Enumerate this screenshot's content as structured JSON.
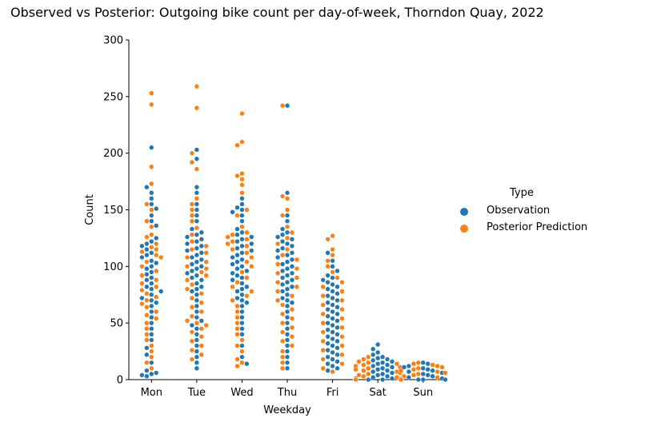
{
  "chart_data": {
    "type": "swarm",
    "title": "Observed vs Posterior: Outgoing bike count per day-of-week, Thorndon Quay, 2022",
    "xlabel": "Weekday",
    "ylabel": "Count",
    "ylim": [
      0,
      300
    ],
    "yticks": [
      0,
      50,
      100,
      150,
      200,
      250,
      300
    ],
    "categories": [
      "Mon",
      "Tue",
      "Wed",
      "Thu",
      "Fri",
      "Sat",
      "Sun"
    ],
    "legend": {
      "title": "Type",
      "placement": "right"
    },
    "series": [
      {
        "name": "Observation",
        "color": "#1f77b4",
        "values": [
          [
            205,
            170,
            165,
            160,
            155,
            151,
            145,
            140,
            136,
            125,
            122,
            120,
            118,
            115,
            112,
            110,
            108,
            105,
            103,
            100,
            98,
            95,
            93,
            90,
            88,
            85,
            82,
            80,
            78,
            75,
            72,
            70,
            68,
            65,
            60,
            55,
            50,
            45,
            40,
            35,
            28,
            22,
            15,
            8,
            6,
            5,
            4,
            3
          ],
          [
            203,
            195,
            170,
            165,
            155,
            150,
            145,
            140,
            133,
            130,
            128,
            126,
            124,
            122,
            120,
            118,
            116,
            114,
            112,
            110,
            108,
            106,
            104,
            102,
            100,
            98,
            96,
            94,
            92,
            90,
            88,
            85,
            82,
            80,
            78,
            75,
            70,
            65,
            60,
            55,
            52,
            48,
            45,
            40,
            35,
            30,
            25,
            20,
            15,
            10
          ],
          [
            160,
            155,
            152,
            150,
            148,
            145,
            140,
            133,
            130,
            128,
            126,
            124,
            122,
            120,
            118,
            116,
            114,
            112,
            110,
            108,
            106,
            104,
            102,
            100,
            98,
            96,
            94,
            92,
            90,
            88,
            85,
            82,
            80,
            78,
            75,
            72,
            70,
            68,
            65,
            60,
            55,
            50,
            45,
            40,
            30,
            20,
            14
          ],
          [
            242,
            165,
            145,
            140,
            133,
            130,
            128,
            126,
            124,
            122,
            120,
            118,
            116,
            114,
            112,
            110,
            108,
            106,
            104,
            102,
            100,
            98,
            96,
            94,
            92,
            90,
            88,
            86,
            84,
            82,
            80,
            78,
            75,
            72,
            70,
            68,
            65,
            60,
            55,
            50,
            45,
            40,
            35,
            30,
            25,
            20,
            15,
            10
          ],
          [
            112,
            105,
            100,
            96,
            92,
            90,
            88,
            86,
            84,
            82,
            80,
            78,
            76,
            74,
            72,
            70,
            68,
            66,
            64,
            62,
            60,
            58,
            56,
            54,
            52,
            50,
            48,
            46,
            44,
            42,
            40,
            38,
            36,
            34,
            32,
            30,
            28,
            26,
            24,
            22,
            20,
            18,
            16,
            14,
            12,
            10,
            8
          ],
          [
            31,
            27,
            24,
            22,
            20,
            19,
            18,
            17,
            16,
            15,
            14,
            13,
            12,
            11,
            10,
            9,
            8,
            7,
            6,
            5,
            4,
            3,
            2,
            1,
            1,
            0,
            0,
            0,
            0,
            0,
            0,
            0,
            0,
            0,
            0,
            0
          ],
          [
            15,
            14,
            12,
            11,
            10,
            9,
            8,
            7,
            6,
            5,
            4,
            3,
            2,
            1,
            0,
            0,
            0,
            0,
            0,
            0,
            0,
            0,
            0,
            0,
            0,
            0,
            0,
            0,
            0,
            0,
            0
          ]
        ]
      },
      {
        "name": "Posterior Prediction",
        "color": "#ff7f0e",
        "values": [
          [
            253,
            243,
            188,
            173,
            155,
            150,
            140,
            135,
            128,
            126,
            120,
            117,
            115,
            113,
            110,
            108,
            104,
            100,
            96,
            92,
            88,
            85,
            82,
            79,
            76,
            73,
            70,
            67,
            64,
            60,
            57,
            54,
            50,
            45,
            40,
            35,
            30,
            25,
            20,
            15,
            10
          ],
          [
            259,
            240,
            200,
            192,
            186,
            160,
            155,
            150,
            145,
            140,
            134,
            128,
            122,
            118,
            115,
            112,
            108,
            104,
            100,
            98,
            95,
            92,
            88,
            84,
            80,
            76,
            72,
            68,
            64,
            60,
            56,
            52,
            50,
            48,
            45,
            42,
            38,
            34,
            30,
            26,
            22,
            18
          ],
          [
            235,
            210,
            207,
            182,
            180,
            177,
            172,
            165,
            150,
            145,
            135,
            130,
            128,
            126,
            124,
            122,
            120,
            118,
            115,
            112,
            108,
            104,
            100,
            95,
            90,
            86,
            82,
            78,
            74,
            70,
            65,
            60,
            55,
            50,
            45,
            40,
            35,
            30,
            25,
            18,
            15,
            12
          ],
          [
            242,
            162,
            160,
            150,
            145,
            135,
            130,
            125,
            120,
            115,
            110,
            106,
            102,
            98,
            94,
            90,
            86,
            82,
            78,
            74,
            70,
            66,
            62,
            58,
            54,
            50,
            46,
            42,
            38,
            34,
            30,
            25,
            20,
            15,
            10
          ],
          [
            127,
            124,
            115,
            110,
            105,
            100,
            95,
            90,
            86,
            82,
            78,
            74,
            70,
            66,
            62,
            58,
            54,
            50,
            46,
            42,
            38,
            34,
            30,
            26,
            22,
            18,
            14,
            10,
            7
          ],
          [
            20,
            18,
            16,
            15,
            14,
            13,
            12,
            11,
            10,
            9,
            8,
            7,
            6,
            5,
            4,
            3,
            2,
            1,
            0,
            0,
            0,
            0,
            0,
            0,
            0,
            0,
            0,
            0,
            0,
            0,
            0,
            0,
            0,
            0
          ],
          [
            15,
            14,
            13,
            12,
            11,
            10,
            9,
            8,
            7,
            6,
            5,
            4,
            3,
            2,
            1,
            0,
            0,
            0,
            0,
            0,
            0,
            0,
            0,
            0,
            0,
            0,
            0,
            0,
            0,
            0,
            0,
            0
          ]
        ]
      }
    ]
  }
}
